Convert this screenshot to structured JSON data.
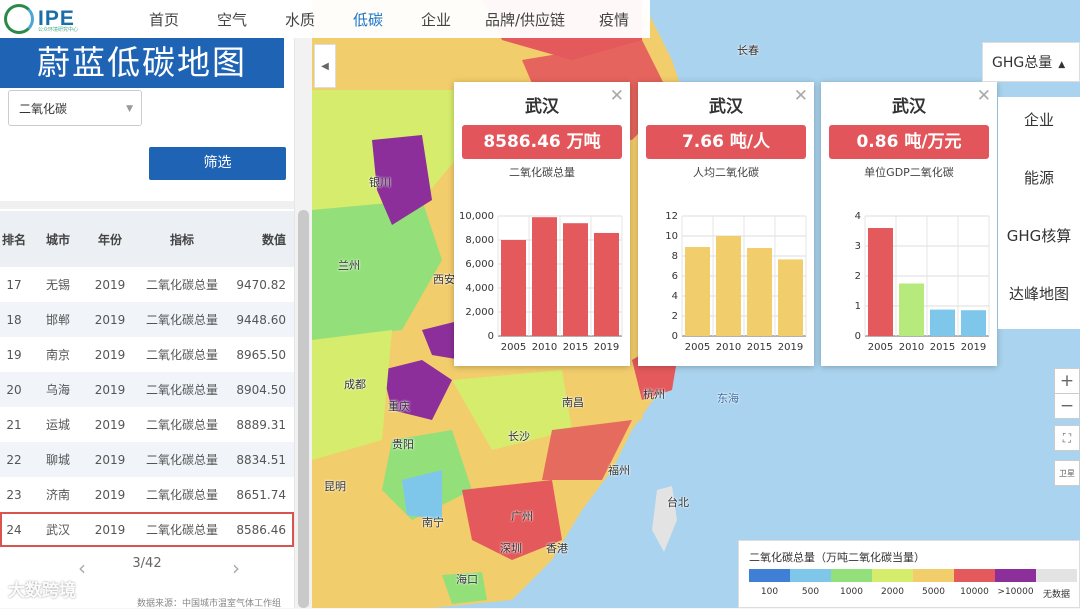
{
  "nav": {
    "logo": "IPE",
    "logo_sub": "公众环境研究中心",
    "items": [
      "首页",
      "空气",
      "水质",
      "低碳",
      "企业",
      "品牌/供应链",
      "疫情"
    ],
    "active": "低碳"
  },
  "panel": {
    "title": "蔚蓝低碳地图",
    "select_value": "二氧化碳",
    "filter_label": "筛选",
    "table": {
      "headers": [
        "排名",
        "城市",
        "年份",
        "指标",
        "数值"
      ],
      "rows": [
        {
          "rank": "17",
          "city": "无锡",
          "year": "2019",
          "metric": "二氧化碳总量",
          "value": "9470.82"
        },
        {
          "rank": "18",
          "city": "邯郸",
          "year": "2019",
          "metric": "二氧化碳总量",
          "value": "9448.60"
        },
        {
          "rank": "19",
          "city": "南京",
          "year": "2019",
          "metric": "二氧化碳总量",
          "value": "8965.50"
        },
        {
          "rank": "20",
          "city": "乌海",
          "year": "2019",
          "metric": "二氧化碳总量",
          "value": "8904.50"
        },
        {
          "rank": "21",
          "city": "运城",
          "year": "2019",
          "metric": "二氧化碳总量",
          "value": "8889.31"
        },
        {
          "rank": "22",
          "city": "聊城",
          "year": "2019",
          "metric": "二氧化碳总量",
          "value": "8834.51"
        },
        {
          "rank": "23",
          "city": "济南",
          "year": "2019",
          "metric": "二氧化碳总量",
          "value": "8651.74"
        },
        {
          "rank": "24",
          "city": "武汉",
          "year": "2019",
          "metric": "二氧化碳总量",
          "value": "8586.46"
        }
      ]
    },
    "page": "3/42",
    "source": "数据来源：中国城市温室气体工作组"
  },
  "cards": [
    {
      "city": "武汉",
      "value": "8586.46 万吨",
      "label": "二氧化碳总量"
    },
    {
      "city": "武汉",
      "value": "7.66 吨/人",
      "label": "人均二氧化碳"
    },
    {
      "city": "武汉",
      "value": "0.86 吨/万元",
      "label": "单位GDP二氧化碳"
    }
  ],
  "right": {
    "ghg_menu": "GHG总量",
    "menu": [
      "企业",
      "能源",
      "GHG核算",
      "达峰地图"
    ],
    "zoom_in": "+",
    "zoom_out": "−",
    "satellite": "卫星"
  },
  "legend": {
    "title": "二氧化碳总量（万吨二氧化碳当量）",
    "ticks": [
      "100",
      "500",
      "1000",
      "2000",
      "5000",
      "10000",
      ">10000",
      "无数据"
    ],
    "colors": [
      "#3f7fd6",
      "#7ec7ea",
      "#93e07a",
      "#d6ec6c",
      "#f2cd6b",
      "#e3595c",
      "#8c2f9a",
      "#e3e3e3"
    ]
  },
  "map_labels": [
    "长春",
    "银川",
    "兰州",
    "西安",
    "成都",
    "重庆",
    "贵阳",
    "昆明",
    "南宁",
    "广州",
    "深圳",
    "香港",
    "海口",
    "长沙",
    "南昌",
    "杭州",
    "福州",
    "台北",
    "东海"
  ],
  "watermark": "大数跨境",
  "chart_data": [
    {
      "type": "bar",
      "title": "二氧化碳总量",
      "categories": [
        "2005",
        "2010",
        "2015",
        "2019"
      ],
      "values": [
        8000,
        9900,
        9400,
        8586.46
      ],
      "ylim": [
        0,
        10000
      ],
      "yticks": [
        "0",
        "2,000",
        "4,000",
        "6,000",
        "8,000",
        "10,000"
      ],
      "color": "#e3595c"
    },
    {
      "type": "bar",
      "title": "人均二氧化碳",
      "categories": [
        "2005",
        "2010",
        "2015",
        "2019"
      ],
      "values": [
        8.9,
        10.0,
        8.8,
        7.66
      ],
      "ylim": [
        0,
        12
      ],
      "yticks": [
        "0",
        "2",
        "4",
        "6",
        "8",
        "10",
        "12"
      ],
      "color": "#f2cd6b"
    },
    {
      "type": "bar",
      "title": "单位GDP二氧化碳",
      "categories": [
        "2005",
        "2010",
        "2015",
        "2019"
      ],
      "values": [
        3.6,
        1.75,
        0.88,
        0.86
      ],
      "ylim": [
        0,
        4
      ],
      "yticks": [
        "0",
        "1",
        "2",
        "3",
        "4"
      ],
      "colors": [
        "#e3595c",
        "#b7ea7c",
        "#7ec7ea",
        "#7ec7ea"
      ]
    }
  ]
}
